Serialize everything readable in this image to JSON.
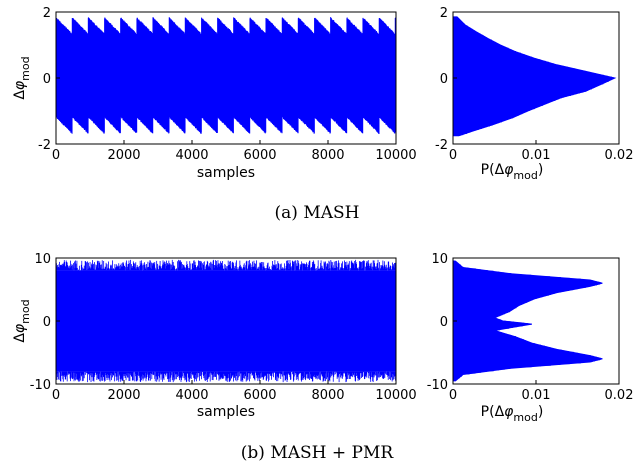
{
  "captions": [
    "(a)  MASH",
    "(b)  MASH + PMR"
  ],
  "colors": {
    "series": "#0000ff",
    "axes": "#000000",
    "background": "#ffffff"
  },
  "chart_data": [
    {
      "id": "a-time",
      "type": "line",
      "title": "",
      "xlabel": "samples",
      "ylabel": "Δφmod",
      "xlim": [
        0,
        10000
      ],
      "ylim": [
        -2,
        2
      ],
      "xticks": [
        "0",
        "2000",
        "4000",
        "6000",
        "8000",
        "10000"
      ],
      "yticks": [
        "2",
        "0",
        "-2"
      ],
      "grid": false,
      "series": [
        {
          "pattern": "periodic sawtooth envelope",
          "period_samples": 475,
          "upper_envelope": [
            1.85,
            1.35
          ],
          "lower_envelope": [
            -1.2,
            -1.7
          ],
          "x": [
            0,
            475,
            950,
            1425,
            1900,
            2375,
            2850,
            3325,
            3800,
            4275,
            4750,
            5225,
            5700,
            6175,
            6650,
            7125,
            7600,
            8075,
            8550,
            9025,
            9500,
            9975
          ],
          "max": [
            1.85,
            1.85,
            1.85,
            1.85,
            1.85,
            1.85,
            1.85,
            1.85,
            1.85,
            1.85,
            1.85,
            1.85,
            1.85,
            1.85,
            1.85,
            1.85,
            1.85,
            1.85,
            1.85,
            1.85,
            1.85,
            1.85
          ],
          "min": [
            -1.2,
            -1.2,
            -1.2,
            -1.2,
            -1.2,
            -1.2,
            -1.2,
            -1.2,
            -1.2,
            -1.2,
            -1.2,
            -1.2,
            -1.2,
            -1.2,
            -1.2,
            -1.2,
            -1.2,
            -1.2,
            -1.2,
            -1.2,
            -1.2,
            -1.2
          ]
        }
      ]
    },
    {
      "id": "a-hist",
      "type": "area",
      "title": "",
      "xlabel": "P(Δφmod)",
      "ylabel": "",
      "xlim": [
        0,
        0.02
      ],
      "ylim": [
        -2,
        2
      ],
      "xticks": [
        "0",
        "0.01",
        "0.02"
      ],
      "yticks": [
        "2",
        "0",
        "-2"
      ],
      "grid": false,
      "orientation": "horizontal",
      "series": [
        {
          "y": [
            1.85,
            1.6,
            1.4,
            1.2,
            1.0,
            0.8,
            0.6,
            0.4,
            0.2,
            0.0,
            -0.2,
            -0.4,
            -0.6,
            -0.8,
            -1.0,
            -1.2,
            -1.4,
            -1.6,
            -1.75
          ],
          "p": [
            0.0005,
            0.0015,
            0.0028,
            0.0042,
            0.0057,
            0.0075,
            0.0098,
            0.0125,
            0.016,
            0.0195,
            0.0178,
            0.016,
            0.013,
            0.011,
            0.009,
            0.0072,
            0.005,
            0.0025,
            0.0007
          ]
        }
      ]
    },
    {
      "id": "b-time",
      "type": "line",
      "title": "",
      "xlabel": "samples",
      "ylabel": "Δφmod",
      "xlim": [
        0,
        10000
      ],
      "ylim": [
        -10,
        10
      ],
      "xticks": [
        "0",
        "2000",
        "4000",
        "6000",
        "8000",
        "10000"
      ],
      "yticks": [
        "10",
        "0",
        "-10"
      ],
      "grid": false,
      "series": [
        {
          "pattern": "dense noise band",
          "typical_range": [
            -8,
            8
          ],
          "extreme_range": [
            -9.7,
            9.7
          ]
        }
      ]
    },
    {
      "id": "b-hist",
      "type": "area",
      "title": "",
      "xlabel": "P(Δφmod)",
      "ylabel": "",
      "xlim": [
        0,
        0.02
      ],
      "ylim": [
        -10,
        10
      ],
      "xticks": [
        "0",
        "0.01",
        "0.02"
      ],
      "yticks": [
        "10",
        "0",
        "-10"
      ],
      "grid": false,
      "orientation": "horizontal",
      "series": [
        {
          "y": [
            9.5,
            8.5,
            7.5,
            6.5,
            6.0,
            5.5,
            4.5,
            3.5,
            2.5,
            1.5,
            0.5,
            0.0,
            -0.5,
            -1.5,
            -2.5,
            -3.5,
            -4.5,
            -5.5,
            -6.0,
            -6.5,
            -7.5,
            -8.5,
            -9.5
          ],
          "p": [
            0.0003,
            0.0012,
            0.007,
            0.0165,
            0.018,
            0.0165,
            0.0125,
            0.0098,
            0.008,
            0.0068,
            0.005,
            0.006,
            0.0095,
            0.005,
            0.0075,
            0.0095,
            0.0125,
            0.0165,
            0.018,
            0.0165,
            0.007,
            0.0012,
            0.0003
          ]
        }
      ]
    }
  ]
}
